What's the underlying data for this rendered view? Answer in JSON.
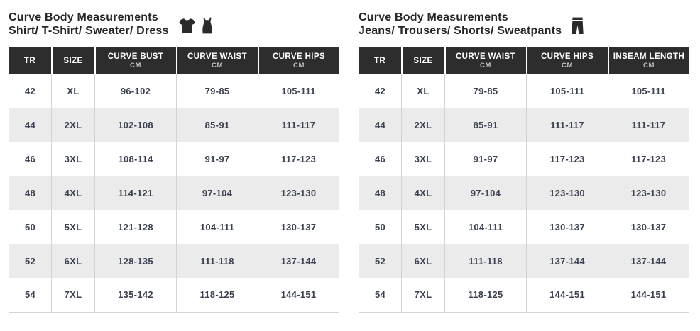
{
  "colors": {
    "header_bg": "#2d2d2d",
    "header_text": "#ffffff",
    "header_subtext": "#c4c4c4",
    "body_text": "#3a4150",
    "stripe_row": "#ebebeb",
    "table_border": "#d4d4d4",
    "title_text": "#262626",
    "icon_fill": "#2b2b2b"
  },
  "tables": [
    {
      "title_line1": "Curve Body Measurements",
      "title_line2": "Shirt/ T-Shirt/ Sweater/ Dress",
      "icons": [
        "tshirt-icon",
        "dress-icon"
      ],
      "columns": [
        {
          "label": "TR",
          "sub": ""
        },
        {
          "label": "SIZE",
          "sub": ""
        },
        {
          "label": "CURVE BUST",
          "sub": "CM"
        },
        {
          "label": "CURVE WAIST",
          "sub": "CM"
        },
        {
          "label": "CURVE HIPS",
          "sub": "CM"
        }
      ],
      "rows": [
        [
          "42",
          "XL",
          "96-102",
          "79-85",
          "105-111"
        ],
        [
          "44",
          "2XL",
          "102-108",
          "85-91",
          "111-117"
        ],
        [
          "46",
          "3XL",
          "108-114",
          "91-97",
          "117-123"
        ],
        [
          "48",
          "4XL",
          "114-121",
          "97-104",
          "123-130"
        ],
        [
          "50",
          "5XL",
          "121-128",
          "104-111",
          "130-137"
        ],
        [
          "52",
          "6XL",
          "128-135",
          "111-118",
          "137-144"
        ],
        [
          "54",
          "7XL",
          "135-142",
          "118-125",
          "144-151"
        ]
      ]
    },
    {
      "title_line1": "Curve Body Measurements",
      "title_line2": "Jeans/ Trousers/ Shorts/ Sweatpants",
      "icons": [
        "pants-icon"
      ],
      "columns": [
        {
          "label": "TR",
          "sub": ""
        },
        {
          "label": "SIZE",
          "sub": ""
        },
        {
          "label": "CURVE WAIST",
          "sub": "CM"
        },
        {
          "label": "CURVE HIPS",
          "sub": "CM"
        },
        {
          "label": "INSEAM LENGTH",
          "sub": "CM"
        }
      ],
      "rows": [
        [
          "42",
          "XL",
          "79-85",
          "105-111",
          "105-111"
        ],
        [
          "44",
          "2XL",
          "85-91",
          "111-117",
          "111-117"
        ],
        [
          "46",
          "3XL",
          "91-97",
          "117-123",
          "117-123"
        ],
        [
          "48",
          "4XL",
          "97-104",
          "123-130",
          "123-130"
        ],
        [
          "50",
          "5XL",
          "104-111",
          "130-137",
          "130-137"
        ],
        [
          "52",
          "6XL",
          "111-118",
          "137-144",
          "137-144"
        ],
        [
          "54",
          "7XL",
          "118-125",
          "144-151",
          "144-151"
        ]
      ]
    }
  ]
}
